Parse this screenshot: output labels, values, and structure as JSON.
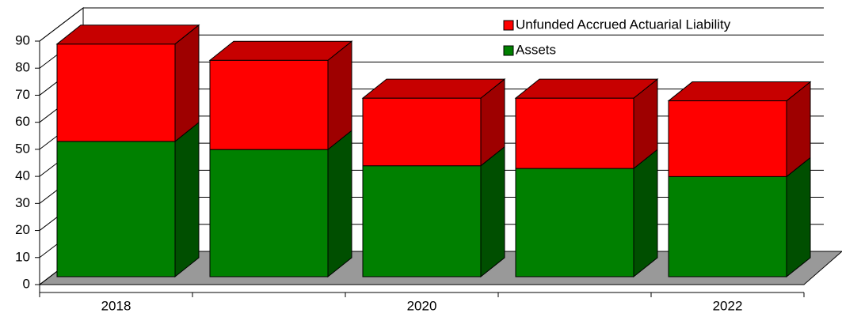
{
  "chart_data": {
    "type": "bar3d_stacked",
    "categories": [
      "2018",
      null,
      "2020",
      null,
      "2022"
    ],
    "series": [
      {
        "name": "Assets",
        "color": "#008000",
        "values": [
          50,
          47,
          41,
          40,
          37
        ]
      },
      {
        "name": "Unfunded Accrued Actuarial Liability",
        "color": "#ff0000",
        "values": [
          36,
          33,
          25,
          26,
          28
        ]
      }
    ],
    "ylim": [
      0,
      90
    ],
    "yticks": [
      0,
      10,
      20,
      30,
      40,
      50,
      60,
      70,
      80,
      90
    ],
    "grid": true,
    "legend": "top-right"
  }
}
